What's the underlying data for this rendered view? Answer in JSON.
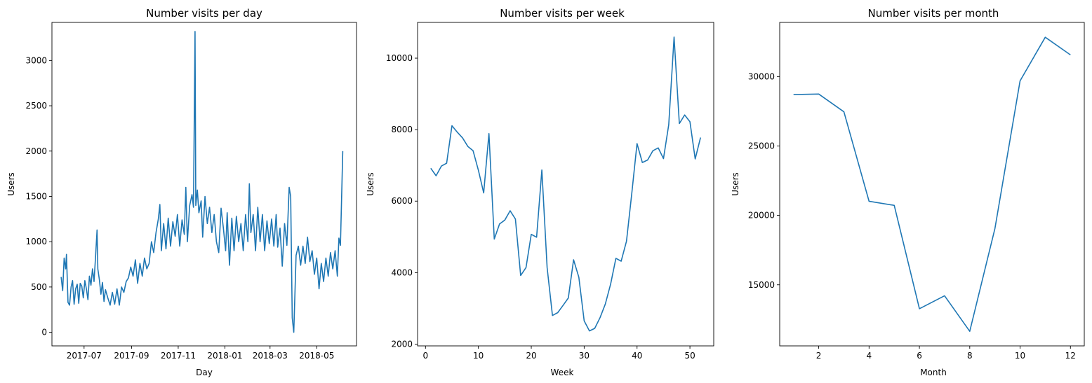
{
  "chart_data": [
    {
      "type": "line",
      "title": "Number visits per day",
      "xlabel": "Day",
      "ylabel": "Users",
      "x_axis": "date",
      "x_ticks": [
        "2017-07",
        "2017-09",
        "2017-11",
        "2018-01",
        "2018-03",
        "2018-05"
      ],
      "xlim": [
        "2017-05-20",
        "2018-06-22"
      ],
      "y_ticks": [
        0,
        500,
        1000,
        1500,
        2000,
        2500,
        3000
      ],
      "ylim": [
        -150,
        3420
      ],
      "grid": false,
      "series": [
        {
          "color": "#1f77b4",
          "points": [
            [
              "2017-06-01",
              610
            ],
            [
              "2017-06-03",
              460
            ],
            [
              "2017-06-05",
              820
            ],
            [
              "2017-06-07",
              700
            ],
            [
              "2017-06-08",
              860
            ],
            [
              "2017-06-10",
              330
            ],
            [
              "2017-06-12",
              300
            ],
            [
              "2017-06-14",
              500
            ],
            [
              "2017-06-16",
              570
            ],
            [
              "2017-06-18",
              310
            ],
            [
              "2017-06-20",
              480
            ],
            [
              "2017-06-22",
              530
            ],
            [
              "2017-06-24",
              320
            ],
            [
              "2017-06-26",
              540
            ],
            [
              "2017-06-28",
              510
            ],
            [
              "2017-06-30",
              380
            ],
            [
              "2017-07-02",
              570
            ],
            [
              "2017-07-04",
              480
            ],
            [
              "2017-07-06",
              360
            ],
            [
              "2017-07-08",
              620
            ],
            [
              "2017-07-10",
              520
            ],
            [
              "2017-07-12",
              700
            ],
            [
              "2017-07-14",
              560
            ],
            [
              "2017-07-16",
              840
            ],
            [
              "2017-07-18",
              1130
            ],
            [
              "2017-07-19",
              700
            ],
            [
              "2017-07-21",
              580
            ],
            [
              "2017-07-23",
              420
            ],
            [
              "2017-07-25",
              550
            ],
            [
              "2017-07-27",
              340
            ],
            [
              "2017-07-29",
              470
            ],
            [
              "2017-08-01",
              380
            ],
            [
              "2017-08-04",
              300
            ],
            [
              "2017-08-07",
              440
            ],
            [
              "2017-08-10",
              310
            ],
            [
              "2017-08-13",
              480
            ],
            [
              "2017-08-16",
              300
            ],
            [
              "2017-08-19",
              500
            ],
            [
              "2017-08-22",
              440
            ],
            [
              "2017-08-25",
              560
            ],
            [
              "2017-08-28",
              600
            ],
            [
              "2017-08-31",
              720
            ],
            [
              "2017-09-03",
              620
            ],
            [
              "2017-09-06",
              800
            ],
            [
              "2017-09-09",
              540
            ],
            [
              "2017-09-12",
              760
            ],
            [
              "2017-09-15",
              620
            ],
            [
              "2017-09-18",
              820
            ],
            [
              "2017-09-21",
              700
            ],
            [
              "2017-09-24",
              760
            ],
            [
              "2017-09-27",
              1000
            ],
            [
              "2017-09-30",
              880
            ],
            [
              "2017-10-03",
              1100
            ],
            [
              "2017-10-06",
              1250
            ],
            [
              "2017-10-08",
              1410
            ],
            [
              "2017-10-10",
              900
            ],
            [
              "2017-10-13",
              1200
            ],
            [
              "2017-10-16",
              920
            ],
            [
              "2017-10-19",
              1260
            ],
            [
              "2017-10-22",
              950
            ],
            [
              "2017-10-25",
              1220
            ],
            [
              "2017-10-28",
              1060
            ],
            [
              "2017-10-31",
              1300
            ],
            [
              "2017-11-03",
              950
            ],
            [
              "2017-11-06",
              1240
            ],
            [
              "2017-11-09",
              1080
            ],
            [
              "2017-11-11",
              1600
            ],
            [
              "2017-11-13",
              1000
            ],
            [
              "2017-11-16",
              1400
            ],
            [
              "2017-11-19",
              1520
            ],
            [
              "2017-11-21",
              1380
            ],
            [
              "2017-11-23",
              3320
            ],
            [
              "2017-11-24",
              1400
            ],
            [
              "2017-11-26",
              1570
            ],
            [
              "2017-11-28",
              1320
            ],
            [
              "2017-12-01",
              1450
            ],
            [
              "2017-12-03",
              1050
            ],
            [
              "2017-12-06",
              1500
            ],
            [
              "2017-12-09",
              1200
            ],
            [
              "2017-12-12",
              1380
            ],
            [
              "2017-12-15",
              1100
            ],
            [
              "2017-12-18",
              1300
            ],
            [
              "2017-12-21",
              1000
            ],
            [
              "2017-12-24",
              880
            ],
            [
              "2017-12-27",
              1370
            ],
            [
              "2017-12-30",
              1150
            ],
            [
              "2018-01-02",
              900
            ],
            [
              "2018-01-04",
              1320
            ],
            [
              "2018-01-07",
              740
            ],
            [
              "2018-01-10",
              1260
            ],
            [
              "2018-01-13",
              900
            ],
            [
              "2018-01-16",
              1280
            ],
            [
              "2018-01-19",
              1000
            ],
            [
              "2018-01-22",
              1200
            ],
            [
              "2018-01-25",
              900
            ],
            [
              "2018-01-28",
              1300
            ],
            [
              "2018-01-31",
              1000
            ],
            [
              "2018-02-02",
              1640
            ],
            [
              "2018-02-04",
              1100
            ],
            [
              "2018-02-07",
              1300
            ],
            [
              "2018-02-10",
              900
            ],
            [
              "2018-02-13",
              1380
            ],
            [
              "2018-02-16",
              1000
            ],
            [
              "2018-02-19",
              1300
            ],
            [
              "2018-02-22",
              900
            ],
            [
              "2018-02-25",
              1230
            ],
            [
              "2018-02-28",
              980
            ],
            [
              "2018-03-03",
              1250
            ],
            [
              "2018-03-06",
              950
            ],
            [
              "2018-03-09",
              1300
            ],
            [
              "2018-03-11",
              940
            ],
            [
              "2018-03-14",
              1150
            ],
            [
              "2018-03-17",
              730
            ],
            [
              "2018-03-20",
              1200
            ],
            [
              "2018-03-23",
              960
            ],
            [
              "2018-03-26",
              1600
            ],
            [
              "2018-03-28",
              1500
            ],
            [
              "2018-03-30",
              160
            ],
            [
              "2018-04-01",
              0
            ],
            [
              "2018-04-04",
              850
            ],
            [
              "2018-04-07",
              950
            ],
            [
              "2018-04-10",
              740
            ],
            [
              "2018-04-13",
              950
            ],
            [
              "2018-04-16",
              760
            ],
            [
              "2018-04-19",
              1050
            ],
            [
              "2018-04-22",
              780
            ],
            [
              "2018-04-25",
              900
            ],
            [
              "2018-04-28",
              640
            ],
            [
              "2018-05-01",
              820
            ],
            [
              "2018-05-04",
              480
            ],
            [
              "2018-05-07",
              760
            ],
            [
              "2018-05-10",
              560
            ],
            [
              "2018-05-13",
              820
            ],
            [
              "2018-05-16",
              620
            ],
            [
              "2018-05-19",
              880
            ],
            [
              "2018-05-22",
              700
            ],
            [
              "2018-05-25",
              900
            ],
            [
              "2018-05-28",
              620
            ],
            [
              "2018-05-30",
              1040
            ],
            [
              "2018-06-01",
              960
            ],
            [
              "2018-06-04",
              2000
            ]
          ]
        }
      ]
    },
    {
      "type": "line",
      "title": "Number visits per week",
      "xlabel": "Week",
      "ylabel": "Users",
      "x_ticks": [
        0,
        10,
        20,
        30,
        40,
        50
      ],
      "xlim": [
        -1.5,
        54.5
      ],
      "y_ticks": [
        2000,
        4000,
        6000,
        8000,
        10000
      ],
      "ylim": [
        1950,
        11000
      ],
      "grid": false,
      "series": [
        {
          "color": "#1f77b4",
          "x": [
            1,
            2,
            3,
            4,
            5,
            6,
            7,
            8,
            9,
            10,
            11,
            12,
            13,
            14,
            15,
            16,
            17,
            18,
            19,
            20,
            21,
            22,
            23,
            24,
            25,
            26,
            27,
            28,
            29,
            30,
            31,
            32,
            33,
            34,
            35,
            36,
            37,
            38,
            39,
            40,
            41,
            42,
            43,
            44,
            45,
            46,
            47,
            48,
            49,
            50,
            51,
            52
          ],
          "y": [
            6920,
            6710,
            6980,
            7060,
            8110,
            7930,
            7770,
            7530,
            7410,
            6860,
            6230,
            7890,
            4940,
            5360,
            5470,
            5730,
            5500,
            3920,
            4140,
            5070,
            4990,
            6870,
            4140,
            2800,
            2880,
            3080,
            3290,
            4360,
            3870,
            2650,
            2370,
            2440,
            2740,
            3120,
            3680,
            4400,
            4320,
            4880,
            6210,
            7610,
            7080,
            7150,
            7410,
            7490,
            7190,
            8140,
            10590,
            8170,
            8410,
            8220,
            7180,
            7780
          ]
        }
      ]
    },
    {
      "type": "line",
      "title": "Number visits per month",
      "xlabel": "Month",
      "ylabel": "Users",
      "x_ticks": [
        2,
        4,
        6,
        8,
        10,
        12
      ],
      "xlim": [
        0.45,
        12.55
      ],
      "y_ticks": [
        15000,
        20000,
        25000,
        30000
      ],
      "ylim": [
        10600,
        33900
      ],
      "grid": false,
      "series": [
        {
          "color": "#1f77b4",
          "x": [
            1,
            2,
            3,
            4,
            5,
            6,
            7,
            8,
            9,
            10,
            11,
            12
          ],
          "y": [
            28700,
            28740,
            27460,
            21020,
            20720,
            13280,
            14210,
            11650,
            19060,
            29690,
            32830,
            31560
          ]
        }
      ]
    }
  ]
}
